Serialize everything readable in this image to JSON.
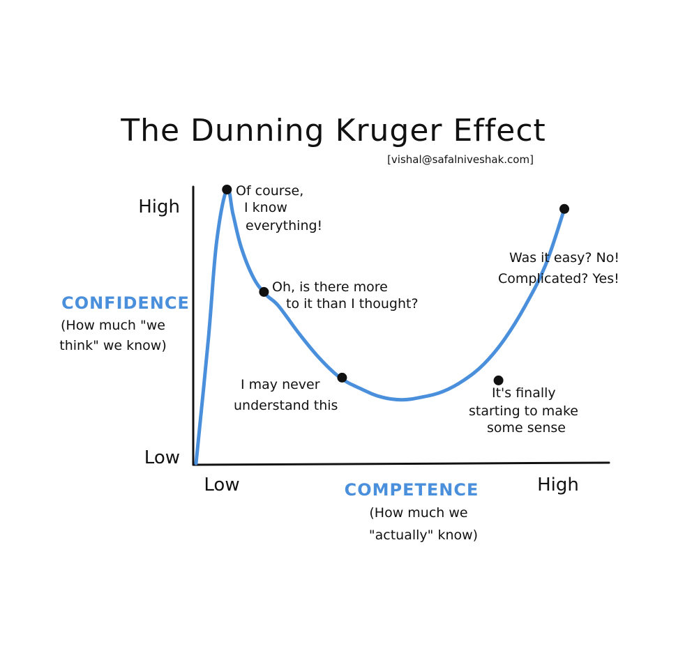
{
  "chart_data": {
    "type": "line",
    "title": "The Dunning Kruger Effect",
    "credit": "[vishal@safalniveshak.com]",
    "xlabel": "COMPETENCE",
    "xlabel_sub": [
      "(How much we",
      "\"actually\" know)"
    ],
    "ylabel": "CONFIDENCE",
    "ylabel_sub": [
      "(How much \"we",
      "think\" we know)"
    ],
    "x_ticks": [
      "Low",
      "High"
    ],
    "y_ticks": [
      "Low",
      "High"
    ],
    "xlim": [
      0,
      100
    ],
    "ylim": [
      0,
      100
    ],
    "grid": false,
    "legend": "none",
    "curve_color": "#4a8fdc",
    "axis_label_color": "#4a8fdc",
    "series": [
      {
        "name": "Confidence",
        "x": [
          0,
          3,
          5,
          7.5,
          9,
          11,
          14,
          17,
          20,
          25,
          30,
          35,
          40,
          45,
          50,
          55,
          60,
          65,
          70,
          75,
          80,
          85,
          89.5
        ],
        "y": [
          0,
          45,
          80,
          99,
          90,
          78,
          67,
          61,
          57,
          47,
          38,
          31,
          27,
          24,
          23,
          24,
          26,
          30,
          36,
          45,
          57,
          72,
          92
        ]
      }
    ],
    "points": [
      {
        "x": 7.5,
        "y": 99,
        "label": [
          "Of course,",
          "I know",
          "everything!"
        ]
      },
      {
        "x": 16.5,
        "y": 62,
        "label": [
          "Oh, is there more",
          "to it than I thought?"
        ]
      },
      {
        "x": 35.5,
        "y": 31,
        "label": [
          "I may never",
          "understand this"
        ]
      },
      {
        "x": 73.5,
        "y": 30,
        "label": [
          "It's finally",
          "starting to make",
          "some sense"
        ]
      },
      {
        "x": 89.5,
        "y": 92,
        "label": [
          "Was it easy? No!",
          "Complicated? Yes!"
        ]
      }
    ]
  }
}
